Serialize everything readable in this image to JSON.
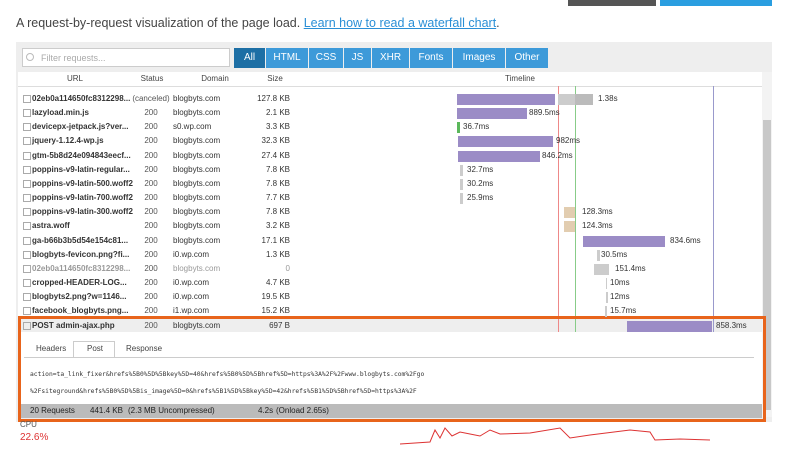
{
  "header": {
    "intro": "A request-by-request visualization of the page load.",
    "link": "Learn how to read a waterfall chart",
    "link_end": "."
  },
  "filter": {
    "placeholder": "Filter requests..."
  },
  "tabs": [
    "All",
    "HTML",
    "CSS",
    "JS",
    "XHR",
    "Fonts",
    "Images",
    "Other"
  ],
  "columns": [
    "URL",
    "Status",
    "Domain",
    "Size",
    "Timeline"
  ],
  "rows": [
    {
      "url": "02eb0a114650fc8312298...",
      "status": "(canceled)",
      "domain": "blogbyts.com",
      "size": "127.8 KB",
      "time": "1.38s"
    },
    {
      "url": "lazyload.min.js",
      "status": "200",
      "domain": "blogbyts.com",
      "size": "2.1 KB",
      "time": "889.5ms"
    },
    {
      "url": "devicepx-jetpack.js?ver...",
      "status": "200",
      "domain": "s0.wp.com",
      "size": "3.3 KB",
      "time": "36.7ms"
    },
    {
      "url": "jquery-1.12.4-wp.js",
      "status": "200",
      "domain": "blogbyts.com",
      "size": "32.3 KB",
      "time": "982ms"
    },
    {
      "url": "gtm-5b8d24e094843eecf...",
      "status": "200",
      "domain": "blogbyts.com",
      "size": "27.4 KB",
      "time": "846.2ms"
    },
    {
      "url": "poppins-v9-latin-regular...",
      "status": "200",
      "domain": "blogbyts.com",
      "size": "7.8 KB",
      "time": "32.7ms"
    },
    {
      "url": "poppins-v9-latin-500.woff2",
      "status": "200",
      "domain": "blogbyts.com",
      "size": "7.8 KB",
      "time": "30.2ms"
    },
    {
      "url": "poppins-v9-latin-700.woff2",
      "status": "200",
      "domain": "blogbyts.com",
      "size": "7.7 KB",
      "time": "25.9ms"
    },
    {
      "url": "poppins-v9-latin-300.woff2",
      "status": "200",
      "domain": "blogbyts.com",
      "size": "7.8 KB",
      "time": "128.3ms"
    },
    {
      "url": "astra.woff",
      "status": "200",
      "domain": "blogbyts.com",
      "size": "3.2 KB",
      "time": "124.3ms"
    },
    {
      "url": "ga-b66b3b5d54e154c81...",
      "status": "200",
      "domain": "blogbyts.com",
      "size": "17.1 KB",
      "time": "834.6ms"
    },
    {
      "url": "blogbyts-fevicon.png?fi...",
      "status": "200",
      "domain": "i0.wp.com",
      "size": "1.3 KB",
      "time": "30.5ms"
    },
    {
      "url": "02eb0a114650fc8312298...",
      "status": "200",
      "domain": "blogbyts.com",
      "size": "0",
      "time": "151.4ms"
    },
    {
      "url": "cropped-HEADER-LOG...",
      "status": "200",
      "domain": "i0.wp.com",
      "size": "4.7 KB",
      "time": "10ms"
    },
    {
      "url": "blogbyts2.png?w=1146...",
      "status": "200",
      "domain": "i0.wp.com",
      "size": "19.5 KB",
      "time": "12ms"
    },
    {
      "url": "facebook_blogbyts.png...",
      "status": "200",
      "domain": "i1.wp.com",
      "size": "15.2 KB",
      "time": "15.7ms"
    },
    {
      "url": "POST admin-ajax.php",
      "status": "200",
      "domain": "blogbyts.com",
      "size": "697 B",
      "time": "858.3ms"
    }
  ],
  "details": {
    "tabs": [
      "Headers",
      "Post",
      "Response"
    ],
    "lines": [
      "action=ta_link_fixer&hrefs%5B0%5D%5Bkey%5D=40&hrefs%5B0%5D%5Bhref%5D=https%3A%2F%2Fwww.blogbyts.com%2Fgo",
      "%2Fsiteground&hrefs%5B0%5D%5Bis_image%5D=0&hrefs%5B1%5D%5Bkey%5D=42&hrefs%5B1%5D%5Bhref%5D=https%3A%2F"
    ]
  },
  "summary": {
    "requests": "20 Requests",
    "size": "441.4 KB",
    "uncompressed": "(2.3 MB Uncompressed)",
    "time": "4.2s",
    "onload": "(Onload 2.65s)"
  },
  "cpu": {
    "label": "CPU",
    "value": "22.6%"
  }
}
